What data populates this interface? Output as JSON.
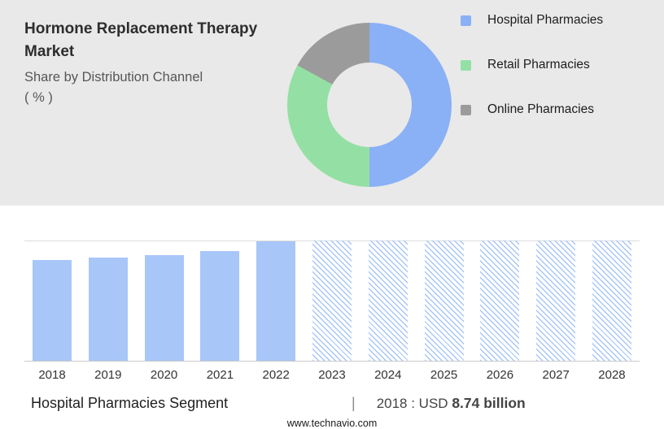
{
  "header": {
    "title": "Hormone Replacement Therapy Market",
    "subtitle": "Share by Distribution Channel",
    "unit": "( % )"
  },
  "legend": [
    {
      "label": "Hospital Pharmacies",
      "color": "#8ab0f5"
    },
    {
      "label": "Retail Pharmacies",
      "color": "#94e0a4"
    },
    {
      "label": "Online Pharmacies",
      "color": "#9b9b9b"
    }
  ],
  "chart_data": [
    {
      "type": "pie",
      "title": "Share by Distribution Channel ( % )",
      "labels": [
        "Hospital Pharmacies",
        "Retail Pharmacies",
        "Online Pharmacies"
      ],
      "values": [
        50,
        33,
        17
      ],
      "colors": [
        "#8ab0f5",
        "#94e0a4",
        "#9b9b9b"
      ],
      "donut": true,
      "legend_position": "right"
    },
    {
      "type": "bar",
      "title": "Hospital Pharmacies Segment (USD billion)",
      "categories": [
        "2018",
        "2019",
        "2020",
        "2021",
        "2022",
        "2023",
        "2024",
        "2025",
        "2026",
        "2027",
        "2028"
      ],
      "values": [
        8.74,
        8.95,
        9.15,
        9.5,
        10.4,
        10.45,
        10.45,
        10.45,
        10.45,
        10.45,
        10.45
      ],
      "forecast": [
        false,
        false,
        false,
        false,
        false,
        true,
        true,
        true,
        true,
        true,
        true
      ],
      "ylim": [
        0,
        10.45
      ],
      "bar_color": "#a8c6f8",
      "xlabel": "",
      "ylabel": ""
    }
  ],
  "caption": {
    "segment_label": "Hospital Pharmacies Segment",
    "separator": "|",
    "value_prefix": "2018 : USD",
    "value_bold": "8.74 billion"
  },
  "footer": {
    "url": "www.technavio.com"
  }
}
